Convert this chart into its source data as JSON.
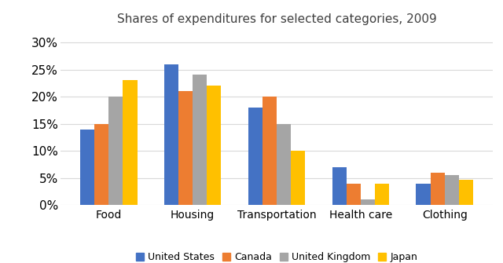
{
  "title": "Shares of expenditures for selected categories, 2009",
  "categories": [
    "Food",
    "Housing",
    "Transportation",
    "Health care",
    "Clothing"
  ],
  "series": [
    {
      "label": "United States",
      "color": "#4472C4",
      "values": [
        0.14,
        0.26,
        0.18,
        0.07,
        0.04
      ]
    },
    {
      "label": "Canada",
      "color": "#ED7D31",
      "values": [
        0.15,
        0.21,
        0.2,
        0.04,
        0.06
      ]
    },
    {
      "label": "United Kingdom",
      "color": "#A5A5A5",
      "values": [
        0.2,
        0.24,
        0.15,
        0.01,
        0.055
      ]
    },
    {
      "label": "Japan",
      "color": "#FFC000",
      "values": [
        0.23,
        0.22,
        0.1,
        0.04,
        0.047
      ]
    }
  ],
  "ylim": [
    0,
    0.32
  ],
  "yticks": [
    0.0,
    0.05,
    0.1,
    0.15,
    0.2,
    0.25,
    0.3
  ],
  "ytick_labels": [
    "0%",
    "5%",
    "10%",
    "15%",
    "20%",
    "25%",
    "30%"
  ],
  "bar_width": 0.17,
  "background_color": "#FFFFFF",
  "grid_color": "#D9D9D9",
  "title_fontsize": 11,
  "tick_fontsize": 11,
  "xlabel_fontsize": 10,
  "legend_fontsize": 9
}
